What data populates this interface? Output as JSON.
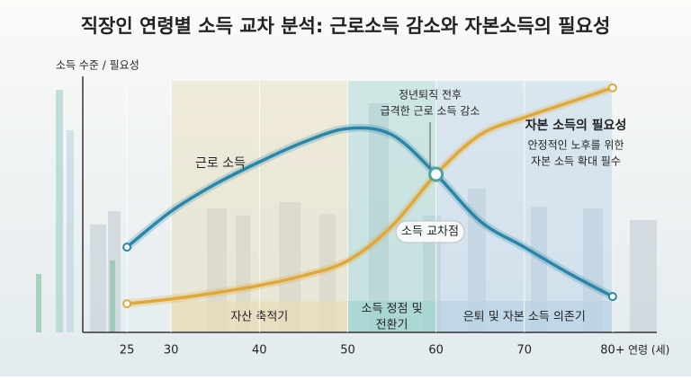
{
  "chart_data": {
    "type": "line",
    "title": "직장인 연령별 소득 교차 분석: 근로소득 감소와 자본소득의 필요성",
    "y_label": "소득 수준 / 필요성",
    "x_label": "연령 (세)",
    "x": [
      25,
      30,
      35,
      40,
      45,
      50,
      55,
      60,
      65,
      70,
      75,
      80
    ],
    "xlim": [
      20,
      85
    ],
    "xticks": [
      25,
      30,
      40,
      50,
      60,
      70,
      {
        "value": 80,
        "label": "80+"
      }
    ],
    "ylim": [
      0,
      100
    ],
    "series": [
      {
        "name": "근로 소득",
        "color": "#2a86a8",
        "values": [
          34.5,
          49,
          60,
          69,
          77,
          82.5,
          80,
          64,
          45,
          34.5,
          24,
          14.5
        ]
      },
      {
        "name": "자본 소득의 필요성",
        "color": "#e0a838",
        "values": [
          11.6,
          13.5,
          16,
          19,
          23,
          29,
          43,
          64,
          80,
          87,
          93,
          99
        ],
        "note": [
          "안정적인 노후를 위한",
          "자본 소득 확대 필수"
        ]
      }
    ],
    "phases": [
      {
        "from": 30,
        "to": 50,
        "label": [
          "자산 축적기"
        ],
        "color": "#e9dcb8"
      },
      {
        "from": 50,
        "to": 60,
        "label": [
          "소득 정점 및",
          "전환기"
        ],
        "color": "#9fd3cf"
      },
      {
        "from": 60,
        "to": 80,
        "label": [
          "은퇴 및 자본 소득 의존기"
        ],
        "color": "#b9d3e6"
      }
    ],
    "annotations": [
      {
        "text": [
          "정년퇴직 전후",
          "급격한 근로 소득 감소"
        ]
      },
      {
        "text": [
          "소득 교차점"
        ]
      }
    ]
  }
}
